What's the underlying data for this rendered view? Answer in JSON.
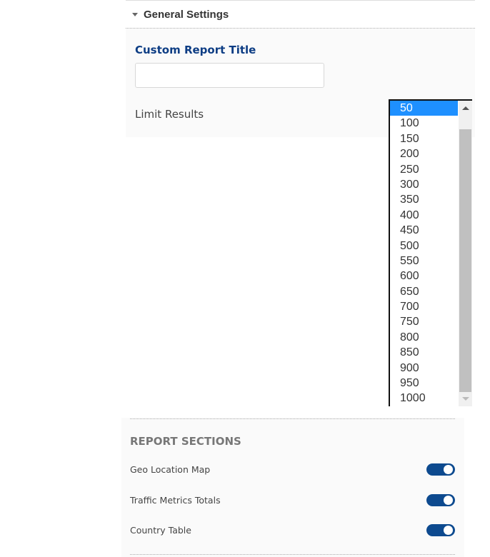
{
  "general": {
    "title": "General Settings",
    "custom_title_label": "Custom Report Title",
    "custom_title_value": "",
    "limit_label": "Limit Results",
    "limit_options": [
      "50",
      "100",
      "150",
      "200",
      "250",
      "300",
      "350",
      "400",
      "450",
      "500",
      "550",
      "600",
      "650",
      "700",
      "750",
      "800",
      "850",
      "900",
      "950",
      "1000"
    ],
    "limit_selected": "50"
  },
  "report_sections": {
    "title": "REPORT SECTIONS",
    "items": [
      {
        "label": "Geo Location Map",
        "enabled": true
      },
      {
        "label": "Traffic Metrics Totals",
        "enabled": true
      },
      {
        "label": "Country Table",
        "enabled": true
      }
    ]
  },
  "colors": {
    "accent": "#0d4a8f",
    "selected": "#1e90ff",
    "label": "#0d3d84"
  }
}
